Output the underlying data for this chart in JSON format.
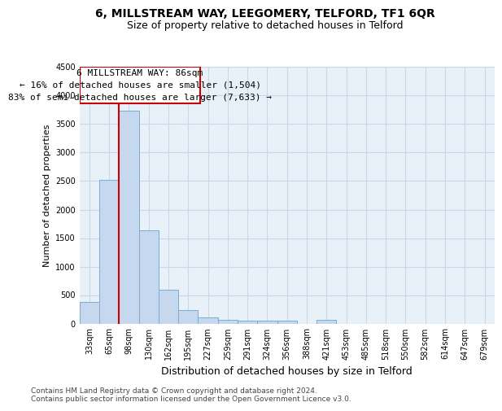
{
  "title1": "6, MILLSTREAM WAY, LEEGOMERY, TELFORD, TF1 6QR",
  "title2": "Size of property relative to detached houses in Telford",
  "xlabel": "Distribution of detached houses by size in Telford",
  "ylabel": "Number of detached properties",
  "categories": [
    "33sqm",
    "65sqm",
    "98sqm",
    "130sqm",
    "162sqm",
    "195sqm",
    "227sqm",
    "259sqm",
    "291sqm",
    "324sqm",
    "356sqm",
    "388sqm",
    "421sqm",
    "453sqm",
    "485sqm",
    "518sqm",
    "550sqm",
    "582sqm",
    "614sqm",
    "647sqm",
    "679sqm"
  ],
  "values": [
    380,
    2520,
    3730,
    1630,
    600,
    240,
    105,
    65,
    55,
    50,
    50,
    0,
    60,
    0,
    0,
    0,
    0,
    0,
    0,
    0,
    0
  ],
  "bar_color": "#c5d8ee",
  "bar_edge_color": "#7aadd4",
  "vline_color": "#cc0000",
  "box_edge_color": "#cc0000",
  "annotation_title": "6 MILLSTREAM WAY: 86sqm",
  "annotation_line1": "← 16% of detached houses are smaller (1,504)",
  "annotation_line2": "83% of semi-detached houses are larger (7,633) →",
  "ylim": [
    0,
    4500
  ],
  "yticks": [
    0,
    500,
    1000,
    1500,
    2000,
    2500,
    3000,
    3500,
    4000,
    4500
  ],
  "grid_color": "#c8d8e8",
  "background_color": "#e8f0f8",
  "footnote": "Contains HM Land Registry data © Crown copyright and database right 2024.\nContains public sector information licensed under the Open Government Licence v3.0.",
  "title1_fontsize": 10,
  "title2_fontsize": 9,
  "xlabel_fontsize": 9,
  "ylabel_fontsize": 8,
  "tick_fontsize": 7,
  "annotation_fontsize": 8,
  "footnote_fontsize": 6.5
}
